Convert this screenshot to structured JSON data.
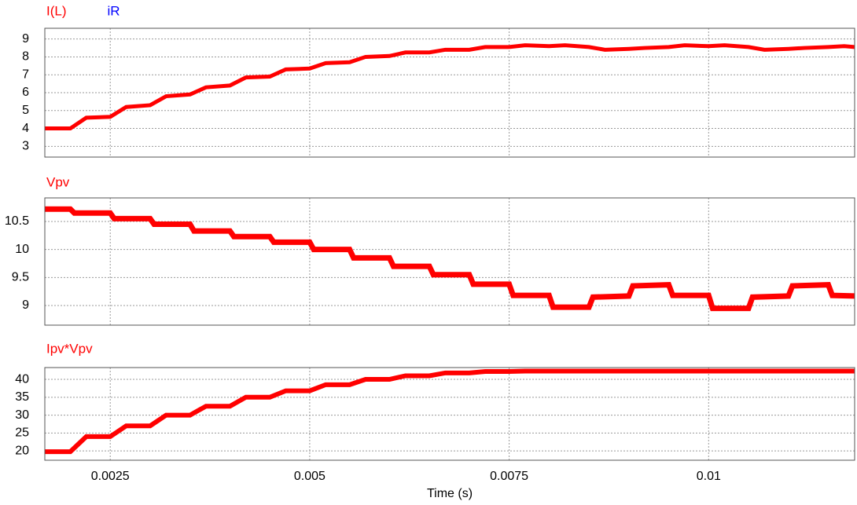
{
  "chart_data": [
    {
      "type": "line",
      "x": [
        0.00168,
        0.002,
        0.0022,
        0.0025,
        0.0027,
        0.003,
        0.0032,
        0.0035,
        0.0037,
        0.004,
        0.0042,
        0.0045,
        0.0047,
        0.005,
        0.0052,
        0.0055,
        0.0057,
        0.006,
        0.0062,
        0.0065,
        0.0067,
        0.007,
        0.0072,
        0.0075,
        0.0077,
        0.008,
        0.0082,
        0.0085,
        0.0087,
        0.009,
        0.0092,
        0.0095,
        0.0097,
        0.01,
        0.0102,
        0.0105,
        0.0107,
        0.011,
        0.0112,
        0.0115,
        0.0117,
        0.01183
      ],
      "series": [
        {
          "name": "I(L)",
          "color": "#ff0000",
          "values": [
            4.0,
            4.0,
            4.6,
            4.65,
            5.2,
            5.3,
            5.8,
            5.9,
            6.3,
            6.4,
            6.85,
            6.9,
            7.3,
            7.35,
            7.65,
            7.7,
            8.0,
            8.05,
            8.25,
            8.25,
            8.4,
            8.4,
            8.55,
            8.55,
            8.65,
            8.6,
            8.65,
            8.55,
            8.4,
            8.45,
            8.5,
            8.55,
            8.65,
            8.6,
            8.65,
            8.55,
            8.4,
            8.45,
            8.5,
            8.55,
            8.6,
            8.55
          ]
        },
        {
          "name": "iR",
          "color": "#0000ff",
          "values": [
            null,
            null,
            null,
            null,
            null,
            null,
            null,
            null,
            null,
            null,
            null,
            null,
            null,
            null,
            null,
            null,
            null,
            null,
            null,
            null,
            null,
            null,
            null,
            null,
            null,
            null,
            null,
            null,
            null,
            null,
            null,
            null,
            null,
            null,
            null,
            null,
            null,
            null,
            null,
            null,
            null,
            null
          ]
        }
      ],
      "xlim": [
        0.00168,
        0.01183
      ],
      "ylim": [
        2.4,
        9.6
      ],
      "xticks": [
        0.0025,
        0.005,
        0.0075,
        0.01
      ],
      "yticks": [
        3,
        4,
        5,
        6,
        7,
        8,
        9
      ],
      "grid": true
    },
    {
      "type": "line",
      "x": [
        0.00168,
        0.002,
        0.00205,
        0.0025,
        0.00255,
        0.003,
        0.00305,
        0.0035,
        0.00355,
        0.004,
        0.00405,
        0.0045,
        0.00455,
        0.005,
        0.00505,
        0.0055,
        0.00555,
        0.006,
        0.00605,
        0.0065,
        0.00655,
        0.007,
        0.00705,
        0.0075,
        0.00755,
        0.008,
        0.00805,
        0.0085,
        0.00855,
        0.009,
        0.00905,
        0.0095,
        0.00955,
        0.01,
        0.01005,
        0.0105,
        0.01055,
        0.011,
        0.01105,
        0.0115,
        0.01155,
        0.01183
      ],
      "series": [
        {
          "name": "Vpv",
          "color": "#ff0000",
          "values": [
            10.72,
            10.72,
            10.65,
            10.65,
            10.55,
            10.55,
            10.45,
            10.45,
            10.33,
            10.33,
            10.23,
            10.23,
            10.13,
            10.13,
            10.0,
            10.0,
            9.85,
            9.85,
            9.7,
            9.7,
            9.55,
            9.55,
            9.38,
            9.38,
            9.18,
            9.18,
            8.97,
            8.97,
            9.15,
            9.17,
            9.35,
            9.37,
            9.18,
            9.18,
            8.95,
            8.95,
            9.15,
            9.17,
            9.35,
            9.37,
            9.18,
            9.17
          ]
        }
      ],
      "xlim": [
        0.00168,
        0.01183
      ],
      "ylim": [
        8.65,
        10.92
      ],
      "xticks": [
        0.0025,
        0.005,
        0.0075,
        0.01
      ],
      "yticks": [
        9,
        9.5,
        10,
        10.5
      ],
      "grid": true
    },
    {
      "type": "line",
      "x": [
        0.00168,
        0.002,
        0.0022,
        0.0025,
        0.0027,
        0.003,
        0.0032,
        0.0035,
        0.0037,
        0.004,
        0.0042,
        0.0045,
        0.0047,
        0.005,
        0.0052,
        0.0055,
        0.0057,
        0.006,
        0.0062,
        0.0065,
        0.0067,
        0.007,
        0.0072,
        0.0075,
        0.0077,
        0.008,
        0.0082,
        0.0085,
        0.0087,
        0.009,
        0.0092,
        0.0095,
        0.0097,
        0.01,
        0.0102,
        0.0105,
        0.0107,
        0.011,
        0.0112,
        0.0115,
        0.0117,
        0.01183
      ],
      "series": [
        {
          "name": "Ipv*Vpv",
          "color": "#ff0000",
          "values": [
            19.8,
            19.8,
            24.0,
            24.0,
            27.0,
            27.0,
            30.0,
            30.0,
            32.5,
            32.5,
            35.0,
            35.0,
            36.8,
            36.8,
            38.5,
            38.5,
            40.0,
            40.0,
            41.0,
            41.0,
            41.8,
            41.8,
            42.2,
            42.2,
            42.3,
            42.3,
            42.3,
            42.3,
            42.3,
            42.3,
            42.3,
            42.3,
            42.3,
            42.3,
            42.3,
            42.3,
            42.3,
            42.3,
            42.3,
            42.3,
            42.3,
            42.3
          ]
        }
      ],
      "xlim": [
        0.00168,
        0.01183
      ],
      "ylim": [
        17.4,
        43.3
      ],
      "xticks": [
        0.0025,
        0.005,
        0.0075,
        0.01
      ],
      "yticks": [
        20,
        25,
        30,
        35,
        40
      ],
      "grid": true,
      "xlabel": "Time (s)"
    }
  ]
}
